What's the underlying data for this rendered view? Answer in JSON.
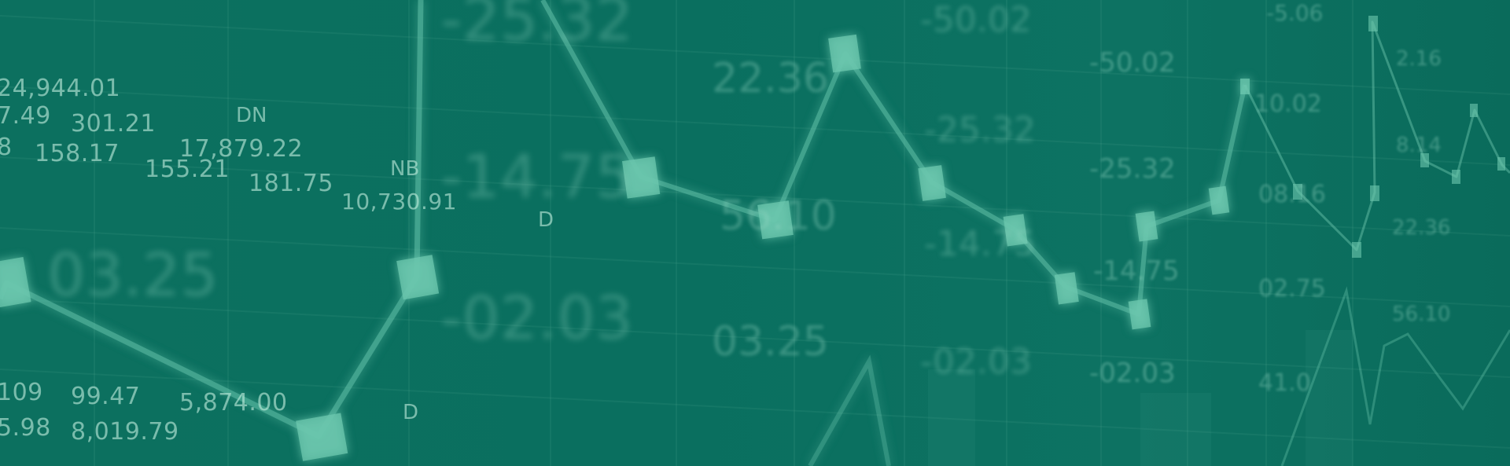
{
  "banner": {
    "background_color": "#0b6f5e",
    "line_color": "#4fb8a0",
    "marker_color": "#5cc2a8",
    "ticker_labels": [
      "24,944.01",
      "7.49",
      "301.21",
      "DN",
      "17,879.22",
      "8",
      "158.17",
      "155.21",
      "181.75",
      "NB",
      "10,730.91",
      "D",
      "109",
      "99.47",
      "5,874.00",
      "5.98",
      "8,019.79",
      "D"
    ],
    "blurred_labels": [
      "-25.32",
      "-14.75",
      "03.25",
      "-02.03",
      "22.36",
      "56.10",
      "03.25",
      "-50.02",
      "-25.32",
      "-14.75",
      "-02.03",
      "-50.02",
      "-25.32",
      "-14.75",
      "-02.03",
      "10.02",
      "08.16",
      "02.75",
      "41.0",
      "-5.06",
      "2.16",
      "8.14",
      "22.36",
      "56.10"
    ]
  }
}
